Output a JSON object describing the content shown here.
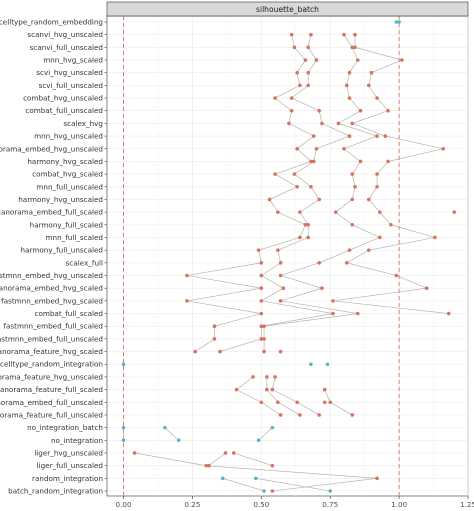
{
  "chart_data": {
    "type": "scatter",
    "facet_title": "silhouette_batch",
    "xlim": [
      -0.06,
      1.25
    ],
    "x_ticks": [
      "0.00",
      "0.25",
      "0.50",
      "0.75",
      "1.00",
      "1.25"
    ],
    "x_tick_values": [
      0,
      0.25,
      0.5,
      0.75,
      1.0,
      1.25
    ],
    "reference_lines": [
      0,
      1
    ],
    "grid": true,
    "colors": {
      "method": "#d8735f",
      "baseline": "#5bb3c9",
      "connector": "#a8a8a8",
      "reference": "#d8735f",
      "strip": "#d9d9d9"
    },
    "categories": [
      "celltype_random_embedding",
      "scanvi_hvg_unscaled",
      "scanvi_full_unscaled",
      "mnn_hvg_scaled",
      "scvi_hvg_unscaled",
      "scvi_full_unscaled",
      "combat_hvg_unscaled",
      "combat_full_unscaled",
      "scalex_hvg",
      "mnn_hvg_unscaled",
      "scanorama_embed_hvg_unscaled",
      "harmony_hvg_scaled",
      "combat_hvg_scaled",
      "mnn_full_unscaled",
      "harmony_hvg_unscaled",
      "scanorama_embed_full_scaled",
      "harmony_full_scaled",
      "mnn_full_scaled",
      "harmony_full_unscaled",
      "scalex_full",
      "fastmnn_embed_hvg_unscaled",
      "scanorama_embed_hvg_scaled",
      "fastmnn_embed_hvg_scaled",
      "combat_full_scaled",
      "fastmnn_embed_full_scaled",
      "fastmnn_embed_full_unscaled",
      "scanorama_feature_hvg_scaled",
      "celltype_random_integration",
      "scanorama_feature_hvg_unscaled",
      "scanorama_feature_full_scaled",
      "scanorama_embed_full_unscaled",
      "scanorama_feature_full_unscaled",
      "no_integration_batch",
      "no_integration",
      "liger_hvg_unscaled",
      "liger_full_unscaled",
      "random_integration",
      "batch_random_integration"
    ],
    "series": [
      {
        "group": "baseline",
        "values": [
          [
            0.99,
            1.0
          ],
          null,
          null,
          null,
          null,
          null,
          null,
          null,
          null,
          null,
          null,
          null,
          null,
          null,
          null,
          null,
          null,
          null,
          null,
          null,
          null,
          null,
          null,
          null,
          null,
          null,
          null,
          null,
          null,
          null,
          null,
          null,
          null,
          null,
          null,
          null,
          null,
          null
        ]
      },
      {
        "group": "method",
        "values": [
          null,
          [
            0.61,
            0.68,
            0.8,
            0.84
          ],
          [
            0.62,
            0.67,
            0.83,
            0.84
          ],
          [
            0.66,
            0.7,
            0.85,
            1.01
          ],
          [
            0.63,
            0.67,
            0.82,
            0.9
          ],
          [
            0.64,
            0.67,
            0.81,
            0.89
          ],
          [
            0.55,
            0.61,
            0.82,
            0.92
          ],
          [
            0.61,
            0.71,
            0.86,
            0.96
          ],
          [
            0.6,
            0.72,
            0.78,
            0.83
          ],
          [
            0.69,
            0.82,
            0.92,
            0.95
          ],
          [
            0.63,
            0.7,
            0.8,
            1.16
          ],
          [
            0.68,
            0.69,
            0.86,
            0.96
          ],
          [
            0.55,
            0.62,
            0.83,
            0.92
          ],
          [
            0.63,
            0.68,
            0.84,
            0.92
          ],
          [
            0.53,
            0.71,
            0.83,
            0.89
          ],
          [
            0.56,
            0.64,
            0.77,
            0.93,
            1.2
          ],
          [
            0.66,
            0.67,
            0.83,
            0.97
          ],
          [
            0.64,
            0.67,
            0.93,
            1.13
          ],
          [
            0.49,
            0.56,
            0.82,
            0.89
          ],
          [
            0.5,
            0.57,
            0.71,
            0.81
          ],
          [
            0.23,
            0.5,
            0.57,
            0.99
          ],
          [
            0.5,
            0.58,
            0.72,
            1.1
          ],
          [
            0.23,
            0.5,
            0.57,
            0.76
          ],
          [
            0.5,
            0.76,
            0.85,
            1.18
          ],
          [
            0.33,
            0.5,
            0.51
          ],
          [
            0.33,
            0.5,
            0.51
          ],
          [
            0.26,
            0.35,
            0.51,
            0.57
          ],
          null,
          [
            0.47,
            0.52,
            0.55
          ],
          [
            0.41,
            0.52,
            0.54,
            0.73
          ],
          [
            0.5,
            0.56,
            0.63,
            0.75,
            0.73
          ],
          [
            0.57,
            0.64,
            0.71,
            0.83
          ],
          null,
          null,
          [
            0.04,
            0.37,
            0.4
          ],
          [
            0.3,
            0.31,
            0.54
          ],
          [
            0.92
          ],
          [
            0.54
          ]
        ]
      },
      {
        "group": "baseline_integration",
        "values": [
          null,
          null,
          null,
          null,
          null,
          null,
          null,
          null,
          null,
          null,
          null,
          null,
          null,
          null,
          null,
          null,
          null,
          null,
          null,
          null,
          null,
          null,
          null,
          null,
          null,
          null,
          null,
          [
            0.0,
            0.68,
            0.74
          ],
          null,
          null,
          null,
          null,
          [
            0.0,
            0.15,
            0.54
          ],
          [
            0.0,
            0.2,
            0.49
          ],
          null,
          null,
          [
            0.36,
            0.48
          ],
          [
            0.51,
            0.75
          ]
        ]
      }
    ]
  }
}
